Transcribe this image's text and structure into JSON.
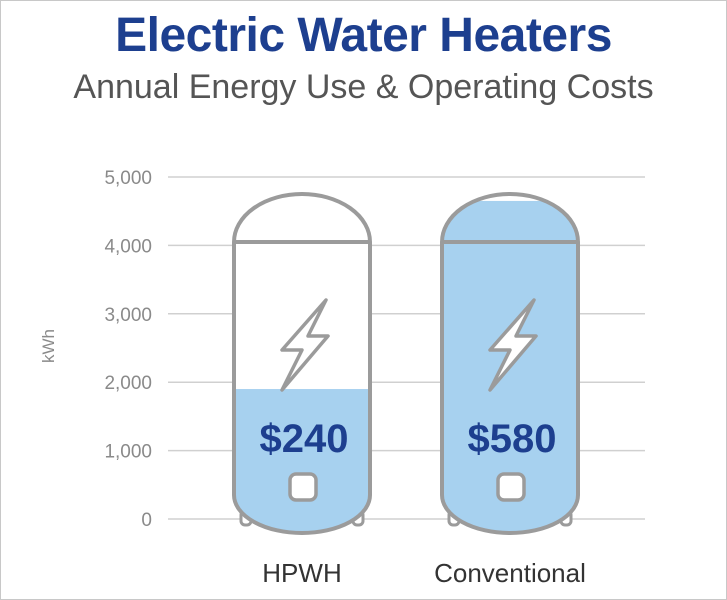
{
  "header": {
    "title": "Electric Water Heaters",
    "subtitle": "Annual Energy Use & Operating Costs"
  },
  "chart_data": {
    "type": "bar",
    "title": "Electric Water Heaters",
    "subtitle": "Annual Energy Use & Operating Costs",
    "xlabel": "",
    "ylabel": "kWh",
    "ylim": [
      0,
      5000
    ],
    "yticks": [
      0,
      1000,
      2000,
      3000,
      4000,
      5000
    ],
    "ytick_labels": [
      "0",
      "1,000",
      "2,000",
      "3,000",
      "4,000",
      "5,000"
    ],
    "grid": true,
    "categories": [
      "HPWH",
      "Conventional"
    ],
    "values": [
      1900,
      4650
    ],
    "cost_labels": [
      "$240",
      "$580"
    ],
    "icon": "lightning-bolt-icon",
    "colors": {
      "fill": "#a7d1ef",
      "outline": "#9b9b9b",
      "grid": "#d0d0d0",
      "title": "#1d3f8f",
      "cost_label": "#1d3f8f"
    }
  }
}
